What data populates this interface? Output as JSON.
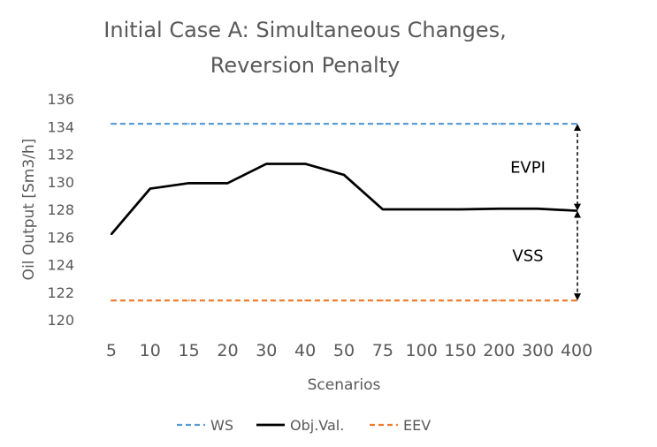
{
  "chart_data": {
    "type": "line",
    "title_lines": [
      "Initial Case A: Simultaneous Changes,",
      "Reversion Penalty"
    ],
    "xlabel": "Scenarios",
    "ylabel": "Oil Output [Sm3/h]",
    "categories": [
      "5",
      "10",
      "15",
      "20",
      "30",
      "40",
      "50",
      "75",
      "100",
      "150",
      "200",
      "300",
      "400"
    ],
    "ylim": [
      120,
      136
    ],
    "yticks": [
      "120",
      "122",
      "124",
      "126",
      "128",
      "130",
      "132",
      "134",
      "136"
    ],
    "grid": false,
    "legend_position": "bottom",
    "series": [
      {
        "name": "WS",
        "style": "dashed",
        "color": "#5B9BD5",
        "values": [
          134.2,
          134.2,
          134.2,
          134.2,
          134.2,
          134.2,
          134.2,
          134.2,
          134.2,
          134.2,
          134.2,
          134.2,
          134.2
        ]
      },
      {
        "name": "Obj.Val.",
        "style": "solid",
        "color": "#000000",
        "values": [
          126.2,
          129.5,
          129.9,
          129.9,
          131.3,
          131.3,
          130.5,
          128.0,
          128.0,
          128.0,
          128.05,
          128.05,
          127.9
        ]
      },
      {
        "name": "EEV",
        "style": "dashed",
        "color": "#ED7D31",
        "values": [
          121.4,
          121.4,
          121.4,
          121.4,
          121.4,
          121.4,
          121.4,
          121.4,
          121.4,
          121.4,
          121.4,
          121.4,
          121.4
        ]
      }
    ],
    "annotations": [
      {
        "text": "EVPI",
        "from": 134.2,
        "to": 127.9
      },
      {
        "text": "VSS",
        "from": 127.9,
        "to": 121.4
      }
    ]
  }
}
